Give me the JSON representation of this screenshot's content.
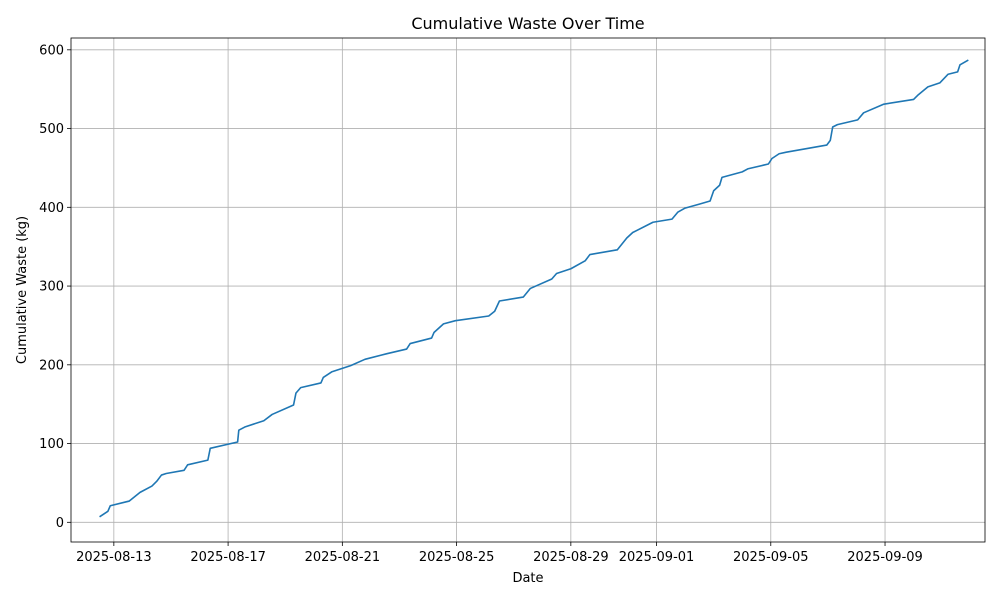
{
  "chart_data": {
    "type": "line",
    "title": "Cumulative Waste Over Time",
    "xlabel": "Date",
    "ylabel": "Cumulative Waste (kg)",
    "grid": true,
    "xlim": [
      "2025-08-11T12:00",
      "2025-09-12T12:00"
    ],
    "ylim": [
      -25,
      615
    ],
    "x_ticks": [
      "2025-08-13",
      "2025-08-17",
      "2025-08-21",
      "2025-08-25",
      "2025-08-29",
      "2025-09-01",
      "2025-09-05",
      "2025-09-09"
    ],
    "y_ticks": [
      0,
      100,
      200,
      300,
      400,
      500,
      600
    ],
    "series": [
      {
        "color": "#1f77b4",
        "points": [
          [
            "2025-08-12T12:00",
            7
          ],
          [
            "2025-08-12T19:00",
            14
          ],
          [
            "2025-08-12T21:00",
            21
          ],
          [
            "2025-08-13T13:00",
            27
          ],
          [
            "2025-08-13T22:00",
            38
          ],
          [
            "2025-08-14T08:00",
            46
          ],
          [
            "2025-08-14T12:00",
            52
          ],
          [
            "2025-08-14T16:00",
            60
          ],
          [
            "2025-08-14T20:00",
            62
          ],
          [
            "2025-08-15T11:00",
            66
          ],
          [
            "2025-08-15T14:00",
            73
          ],
          [
            "2025-08-16T07:00",
            79
          ],
          [
            "2025-08-16T09:00",
            94
          ],
          [
            "2025-08-17T08:00",
            102
          ],
          [
            "2025-08-17T09:00",
            117
          ],
          [
            "2025-08-17T14:00",
            121
          ],
          [
            "2025-08-18T06:00",
            129
          ],
          [
            "2025-08-18T13:00",
            137
          ],
          [
            "2025-08-19T07:00",
            149
          ],
          [
            "2025-08-19T09:00",
            164
          ],
          [
            "2025-08-19T13:00",
            171
          ],
          [
            "2025-08-20T06:00",
            177
          ],
          [
            "2025-08-20T08:00",
            184
          ],
          [
            "2025-08-20T15:00",
            191
          ],
          [
            "2025-08-21T07:00",
            199
          ],
          [
            "2025-08-21T19:00",
            207
          ],
          [
            "2025-08-22T13:00",
            214
          ],
          [
            "2025-08-23T06:00",
            220
          ],
          [
            "2025-08-23T09:00",
            227
          ],
          [
            "2025-08-24T03:00",
            234
          ],
          [
            "2025-08-24T05:00",
            241
          ],
          [
            "2025-08-24T13:00",
            252
          ],
          [
            "2025-08-24T23:00",
            256
          ],
          [
            "2025-08-26T03:00",
            262
          ],
          [
            "2025-08-26T08:00",
            268
          ],
          [
            "2025-08-26T12:00",
            281
          ],
          [
            "2025-08-27T08:00",
            286
          ],
          [
            "2025-08-27T14:00",
            297
          ],
          [
            "2025-08-28T08:00",
            309
          ],
          [
            "2025-08-28T12:00",
            316
          ],
          [
            "2025-08-29T00:00",
            322
          ],
          [
            "2025-08-29T12:00",
            332
          ],
          [
            "2025-08-29T16:00",
            340
          ],
          [
            "2025-08-30T15:00",
            346
          ],
          [
            "2025-08-30T23:00",
            361
          ],
          [
            "2025-08-31T04:00",
            368
          ],
          [
            "2025-08-31T21:00",
            381
          ],
          [
            "2025-09-01T13:00",
            385
          ],
          [
            "2025-09-01T18:00",
            394
          ],
          [
            "2025-09-02T00:00",
            399
          ],
          [
            "2025-09-02T12:00",
            404
          ],
          [
            "2025-09-02T21:00",
            408
          ],
          [
            "2025-09-03T00:00",
            421
          ],
          [
            "2025-09-03T05:00",
            428
          ],
          [
            "2025-09-03T07:00",
            438
          ],
          [
            "2025-09-04T00:00",
            445
          ],
          [
            "2025-09-04T05:00",
            449
          ],
          [
            "2025-09-04T22:00",
            455
          ],
          [
            "2025-09-05T01:00",
            462
          ],
          [
            "2025-09-05T07:00",
            468
          ],
          [
            "2025-09-05T13:00",
            470
          ],
          [
            "2025-09-06T23:00",
            479
          ],
          [
            "2025-09-07T02:00",
            485
          ],
          [
            "2025-09-07T04:00",
            502
          ],
          [
            "2025-09-07T08:00",
            505
          ],
          [
            "2025-09-08T01:00",
            511
          ],
          [
            "2025-09-08T06:00",
            520
          ],
          [
            "2025-09-08T23:00",
            531
          ],
          [
            "2025-09-10T00:00",
            537
          ],
          [
            "2025-09-10T04:00",
            543
          ],
          [
            "2025-09-10T12:00",
            553
          ],
          [
            "2025-09-10T22:00",
            558
          ],
          [
            "2025-09-11T05:00",
            569
          ],
          [
            "2025-09-11T13:00",
            572
          ],
          [
            "2025-09-11T15:00",
            581
          ],
          [
            "2025-09-11T22:00",
            587
          ]
        ]
      }
    ]
  }
}
